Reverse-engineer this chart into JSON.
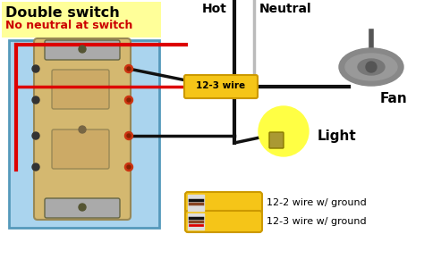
{
  "bg_color": "#ffffff",
  "title1": "Double switch",
  "title2": "No neutral at switch",
  "title1_color": "#000000",
  "title2_color": "#cc0000",
  "title_bg": "#ffff99",
  "label_hot": "Hot",
  "label_neutral": "Neutral",
  "label_fan": "Fan",
  "label_light": "Light",
  "label_wire1": "12-3 wire",
  "label_wire2": "12-2 wire w/ ground",
  "label_wire3": "12-3 wire w/ ground",
  "switch_box_color": "#aad4ee",
  "switch_body_color": "#d4b870",
  "wire_red": "#dd0000",
  "wire_black": "#111111",
  "wire_white": "#bbbbbb",
  "wire_yellow_bundle": "#f5c518",
  "fan_color": "#888888",
  "bulb_color": "#ffff44",
  "figsize": [
    4.74,
    2.9
  ],
  "dpi": 100
}
